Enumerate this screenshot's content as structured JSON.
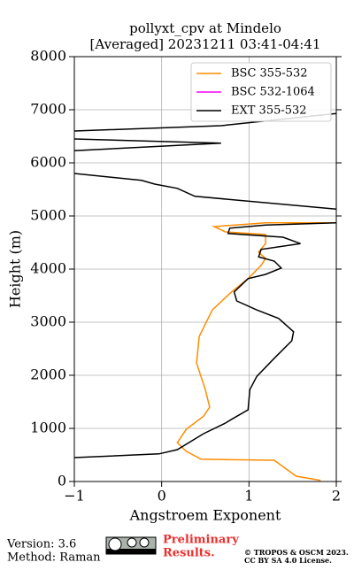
{
  "chart_data": {
    "type": "line",
    "title": "pollyxt_cpv at Mindelo",
    "subtitle": "[Averaged] 20231211 03:41-04:41",
    "xlabel": "Angstroem Exponent",
    "ylabel": "Height (m)",
    "xlim": [
      -1,
      2
    ],
    "ylim": [
      0,
      8000
    ],
    "xticks": [
      {
        "value": -1,
        "label": "−1"
      },
      0,
      1,
      2
    ],
    "yticks": [
      0,
      1000,
      2000,
      3000,
      4000,
      5000,
      6000,
      7000,
      8000
    ],
    "grid": true,
    "legend": "upper right",
    "series": [
      {
        "name": "BSC 355-532",
        "color": "#ff8c00",
        "x": [
          1.82,
          1.54,
          1.29,
          0.45,
          0.28,
          0.18,
          0.28,
          0.48,
          0.55,
          0.5,
          0.4,
          0.43,
          0.58,
          0.8,
          0.99,
          1.14,
          1.19,
          1.11,
          1.19,
          1.19,
          0.73,
          0.6,
          1.19,
          2.0
        ],
        "y": [
          20,
          100,
          400,
          420,
          570,
          730,
          980,
          1230,
          1400,
          1730,
          2230,
          2730,
          3230,
          3570,
          3820,
          4070,
          4200,
          4320,
          4480,
          4650,
          4700,
          4800,
          4870,
          4870
        ]
      },
      {
        "name": "BSC 532-1064",
        "color": "#ff00ff",
        "x": [],
        "y": []
      },
      {
        "name": "EXT 355-532",
        "color": "#000000",
        "x": [
          -1,
          -0.03,
          0.18,
          0.48,
          0.73,
          0.8,
          0.99,
          1.01,
          1.09,
          1.29,
          1.49,
          1.51,
          1.34,
          1.09,
          0.86,
          0.83,
          0.99,
          1.19,
          1.37,
          1.29,
          1.11,
          1.14,
          1.59,
          1.39,
          0.76,
          0.78,
          1.19,
          2.0,
          null,
          2.0,
          0.38,
          0.18,
          -0.08,
          -0.23,
          -1,
          null,
          -1,
          0.68,
          -1,
          null,
          -1,
          0.68,
          2.0
        ],
        "y": [
          450,
          520,
          600,
          900,
          1100,
          1170,
          1350,
          1730,
          1980,
          2320,
          2650,
          2820,
          3070,
          3230,
          3400,
          3570,
          3820,
          3900,
          4020,
          4150,
          4230,
          4370,
          4480,
          4600,
          4670,
          4770,
          4830,
          4870,
          null,
          5130,
          5370,
          5520,
          5600,
          5670,
          5800,
          null,
          6230,
          6370,
          6450,
          null,
          6600,
          6700,
          6930
        ]
      }
    ]
  },
  "footer": {
    "version": "Version: 3.6",
    "method": "Method: Raman",
    "preliminary": "Preliminary",
    "results": "Results.",
    "copyright": "© TROPOS & OSCM 2023.",
    "license": "CC BY SA 4.0 License."
  }
}
